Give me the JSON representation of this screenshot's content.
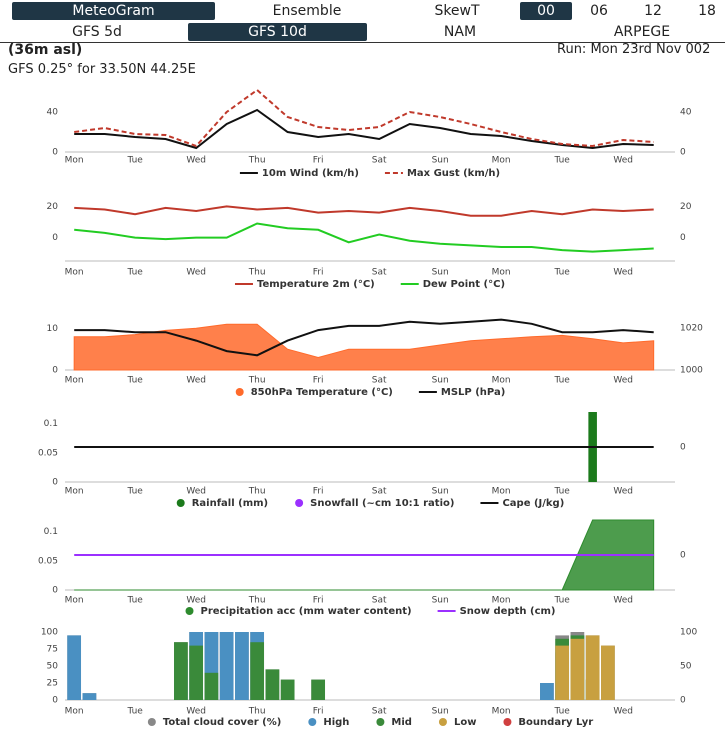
{
  "nav": {
    "row1": [
      "MeteoGram",
      "Ensemble",
      "SkewT",
      "00",
      "06",
      "12",
      "18"
    ],
    "row2": [
      "GFS 5d",
      "GFS 10d",
      "NAM",
      "ARPEGE"
    ]
  },
  "header": {
    "elevation": "(36m asl)",
    "run": "Run: Mon 23rd Nov 002",
    "location": "GFS 0.25° for 33.50N 44.25E"
  },
  "chart_data": [
    {
      "type": "line",
      "xlim": [
        -0.15,
        9.85
      ],
      "xticks": [
        {
          "value": 0,
          "label": "Mon"
        },
        {
          "value": 1,
          "label": "Tue"
        },
        {
          "value": 2,
          "label": "Wed"
        },
        {
          "value": 3,
          "label": "Thu"
        },
        {
          "value": 4,
          "label": "Fri"
        },
        {
          "value": 5,
          "label": "Sat"
        },
        {
          "value": 6,
          "label": "Sun"
        },
        {
          "value": 7,
          "label": "Mon"
        },
        {
          "value": 8,
          "label": "Tue"
        },
        {
          "value": 9,
          "label": "Wed"
        }
      ],
      "x": [
        0,
        0.5,
        1,
        1.5,
        2,
        2.5,
        3,
        3.5,
        4,
        4.5,
        5,
        5.5,
        6,
        6.5,
        7,
        7.5,
        8,
        8.5,
        9,
        9.5
      ],
      "ylim": [
        0,
        55
      ],
      "yticks": [
        0,
        40
      ],
      "y2lim": [
        0,
        55
      ],
      "y2ticks": [
        0,
        40
      ],
      "series": [
        {
          "name": "10m Wind (km/h)",
          "color": "#111111",
          "mark": "line",
          "values": [
            18,
            18,
            15,
            13,
            4,
            28,
            42,
            20,
            15,
            18,
            13,
            28,
            24,
            18,
            16,
            11,
            7,
            4,
            8,
            7
          ]
        },
        {
          "name": "Max Gust (km/h)",
          "color": "#c0392b",
          "mark": "line",
          "dash": true,
          "values": [
            20,
            24,
            18,
            17,
            6,
            40,
            62,
            35,
            25,
            22,
            25,
            40,
            35,
            28,
            20,
            13,
            8,
            6,
            12,
            10
          ]
        }
      ]
    },
    {
      "type": "line",
      "xlim": [
        -0.15,
        9.85
      ],
      "xticks": [
        {
          "value": 0,
          "label": "Mon"
        },
        {
          "value": 1,
          "label": "Tue"
        },
        {
          "value": 2,
          "label": "Wed"
        },
        {
          "value": 3,
          "label": "Thu"
        },
        {
          "value": 4,
          "label": "Fri"
        },
        {
          "value": 5,
          "label": "Sat"
        },
        {
          "value": 6,
          "label": "Sun"
        },
        {
          "value": 7,
          "label": "Mon"
        },
        {
          "value": 8,
          "label": "Tue"
        },
        {
          "value": 9,
          "label": "Wed"
        }
      ],
      "x": [
        0,
        0.5,
        1,
        1.5,
        2,
        2.5,
        3,
        3.5,
        4,
        4.5,
        5,
        5.5,
        6,
        6.5,
        7,
        7.5,
        8,
        8.5,
        9,
        9.5
      ],
      "ylim": [
        -15,
        26
      ],
      "yticks": [
        0,
        20
      ],
      "y2lim": [
        -15,
        26
      ],
      "y2ticks": [
        0,
        20
      ],
      "series": [
        {
          "name": "Temperature 2m (°C)",
          "color": "#c0392b",
          "mark": "line",
          "values": [
            19,
            18,
            15,
            19,
            17,
            20,
            18,
            19,
            16,
            17,
            16,
            19,
            17,
            14,
            14,
            17,
            15,
            18,
            17,
            18
          ]
        },
        {
          "name": "Dew Point (°C)",
          "color": "#22cc22",
          "mark": "line",
          "values": [
            5,
            3,
            0,
            -1,
            0,
            0,
            9,
            6,
            5,
            -3,
            2,
            -2,
            -4,
            -5,
            -6,
            -6,
            -8,
            -9,
            -8,
            -7
          ]
        }
      ]
    },
    {
      "type": "area",
      "xlim": [
        -0.15,
        9.85
      ],
      "xticks": [
        {
          "value": 0,
          "label": "Mon"
        },
        {
          "value": 1,
          "label": "Tue"
        },
        {
          "value": 2,
          "label": "Wed"
        },
        {
          "value": 3,
          "label": "Thu"
        },
        {
          "value": 4,
          "label": "Fri"
        },
        {
          "value": 5,
          "label": "Sat"
        },
        {
          "value": 6,
          "label": "Sun"
        },
        {
          "value": 7,
          "label": "Mon"
        },
        {
          "value": 8,
          "label": "Tue"
        },
        {
          "value": 9,
          "label": "Wed"
        }
      ],
      "x": [
        0,
        0.5,
        1,
        1.5,
        2,
        2.5,
        3,
        3.5,
        4,
        4.5,
        5,
        5.5,
        6,
        6.5,
        7,
        7.5,
        8,
        8.5,
        9,
        9.5
      ],
      "ylim": [
        0,
        12
      ],
      "yticks": [
        0,
        10
      ],
      "y2lim": [
        1000,
        1023.8
      ],
      "y2ticks": [
        1000,
        1020
      ],
      "series": [
        {
          "name": "850hPa Temperature (°C)",
          "color": "#ff6a2b",
          "mark": "area",
          "values": [
            8,
            8,
            8.5,
            9.5,
            10,
            11,
            11,
            5,
            3,
            5,
            5,
            5,
            6,
            7,
            7.5,
            8,
            8.3,
            7.5,
            6.5,
            7
          ]
        },
        {
          "name": "MSLP (hPa)",
          "color": "#111111",
          "mark": "line",
          "axis": "y2",
          "values": [
            1019,
            1019,
            1018,
            1018,
            1014,
            1009,
            1007,
            1014,
            1019,
            1021,
            1021,
            1023,
            1022,
            1023,
            1024,
            1022,
            1018,
            1018,
            1019,
            1018
          ]
        }
      ]
    },
    {
      "type": "bar",
      "xlim": [
        -0.15,
        9.85
      ],
      "xticks": [
        {
          "value": 0,
          "label": "Mon"
        },
        {
          "value": 1,
          "label": "Tue"
        },
        {
          "value": 2,
          "label": "Wed"
        },
        {
          "value": 3,
          "label": "Thu"
        },
        {
          "value": 4,
          "label": "Fri"
        },
        {
          "value": 5,
          "label": "Sat"
        },
        {
          "value": 6,
          "label": "Sun"
        },
        {
          "value": 7,
          "label": "Mon"
        },
        {
          "value": 8,
          "label": "Tue"
        },
        {
          "value": 9,
          "label": "Wed"
        }
      ],
      "x": [
        0,
        0.5,
        1,
        1.5,
        2,
        2.5,
        3,
        3.5,
        4,
        4.5,
        5,
        5.5,
        6,
        6.5,
        7,
        7.5,
        8,
        8.5,
        9,
        9.5
      ],
      "ylim": [
        0,
        0.12
      ],
      "yticks": [
        0,
        0.05,
        0.1
      ],
      "y2lim": [
        -1,
        1
      ],
      "y2ticks": [
        0
      ],
      "series": [
        {
          "name": "Rainfall (mm)",
          "color": "#1b7a1b",
          "mark": "bar",
          "values": [
            0,
            0,
            0,
            0,
            0,
            0,
            0,
            0,
            0,
            0,
            0,
            0,
            0,
            0,
            0,
            0,
            0,
            0.12,
            0,
            0
          ]
        },
        {
          "name": "Snowfall (~cm 10:1 ratio)",
          "color": "#9b30ff",
          "mark": "bar",
          "values": [
            0,
            0,
            0,
            0,
            0,
            0,
            0,
            0,
            0,
            0,
            0,
            0,
            0,
            0,
            0,
            0,
            0,
            0,
            0,
            0
          ]
        },
        {
          "name": "Cape (J/kg)",
          "color": "#111111",
          "mark": "line",
          "axis": "y2",
          "values": [
            0,
            0,
            0,
            0,
            0,
            0,
            0,
            0,
            0,
            0,
            0,
            0,
            0,
            0,
            0,
            0,
            0,
            0,
            0,
            0
          ]
        }
      ]
    },
    {
      "type": "area",
      "xlim": [
        -0.15,
        9.85
      ],
      "xticks": [
        {
          "value": 0,
          "label": "Mon"
        },
        {
          "value": 1,
          "label": "Tue"
        },
        {
          "value": 2,
          "label": "Wed"
        },
        {
          "value": 3,
          "label": "Thu"
        },
        {
          "value": 4,
          "label": "Fri"
        },
        {
          "value": 5,
          "label": "Sat"
        },
        {
          "value": 6,
          "label": "Sun"
        },
        {
          "value": 7,
          "label": "Mon"
        },
        {
          "value": 8,
          "label": "Tue"
        },
        {
          "value": 9,
          "label": "Wed"
        }
      ],
      "x": [
        0,
        0.5,
        1,
        1.5,
        2,
        2.5,
        3,
        3.5,
        4,
        4.5,
        5,
        5.5,
        6,
        6.5,
        7,
        7.5,
        8,
        8.5,
        9,
        9.5
      ],
      "ylim": [
        0,
        0.12
      ],
      "yticks": [
        0,
        0.05,
        0.1
      ],
      "y2lim": [
        -1,
        1
      ],
      "y2ticks": [
        0
      ],
      "series": [
        {
          "name": "Precipitation acc (mm water content)",
          "color": "#2e8b2e",
          "mark": "area",
          "values": [
            0,
            0,
            0,
            0,
            0,
            0,
            0,
            0,
            0,
            0,
            0,
            0,
            0,
            0,
            0,
            0,
            0,
            0.12,
            0.12,
            0.12
          ]
        },
        {
          "name": "Snow depth (cm)",
          "color": "#9b30ff",
          "mark": "line",
          "axis": "y2",
          "values": [
            0,
            0,
            0,
            0,
            0,
            0,
            0,
            0,
            0,
            0,
            0,
            0,
            0,
            0,
            0,
            0,
            0,
            0,
            0,
            0
          ]
        }
      ]
    },
    {
      "type": "bar",
      "xlim": [
        -0.15,
        9.85
      ],
      "xticks": [
        {
          "value": 0,
          "label": "Mon"
        },
        {
          "value": 1,
          "label": "Tue"
        },
        {
          "value": 2,
          "label": "Wed"
        },
        {
          "value": 3,
          "label": "Thu"
        },
        {
          "value": 4,
          "label": "Fri"
        },
        {
          "value": 5,
          "label": "Sat"
        },
        {
          "value": 6,
          "label": "Sun"
        },
        {
          "value": 7,
          "label": "Mon"
        },
        {
          "value": 8,
          "label": "Tue"
        },
        {
          "value": 9,
          "label": "Wed"
        }
      ],
      "x": [
        0,
        0.25,
        0.5,
        0.75,
        1,
        1.25,
        1.5,
        1.75,
        2,
        2.25,
        2.5,
        2.75,
        3,
        3.25,
        3.5,
        3.75,
        4,
        4.25,
        4.5,
        4.75,
        5,
        5.25,
        5.5,
        5.75,
        6,
        6.25,
        6.5,
        6.75,
        7,
        7.25,
        7.5,
        7.75,
        8,
        8.25,
        8.5,
        8.75,
        9,
        9.25,
        9.5,
        9.75
      ],
      "ylim": [
        0,
        100
      ],
      "yticks": [
        0,
        25,
        50,
        75,
        100
      ],
      "y2lim": [
        0,
        100
      ],
      "y2ticks": [
        0,
        50,
        100
      ],
      "series": [
        {
          "name": "Total cloud cover (%)",
          "color": "#888888",
          "mark": "bar",
          "values": [
            95,
            10,
            0,
            0,
            0,
            0,
            0,
            85,
            100,
            100,
            100,
            100,
            100,
            45,
            30,
            0,
            30,
            0,
            0,
            0,
            0,
            0,
            0,
            0,
            0,
            0,
            0,
            0,
            0,
            0,
            0,
            25,
            95,
            100,
            95,
            80,
            0,
            0,
            0,
            0
          ]
        },
        {
          "name": "High",
          "color": "#4a90c2",
          "mark": "bar",
          "values": [
            95,
            10,
            0,
            0,
            0,
            0,
            0,
            60,
            100,
            100,
            100,
            100,
            100,
            0,
            0,
            0,
            0,
            0,
            0,
            0,
            0,
            0,
            0,
            0,
            0,
            0,
            0,
            0,
            0,
            0,
            0,
            25,
            70,
            95,
            0,
            0,
            0,
            0,
            0,
            0
          ]
        },
        {
          "name": "Mid",
          "color": "#3a8a3a",
          "mark": "bar",
          "values": [
            0,
            0,
            0,
            0,
            0,
            0,
            0,
            85,
            80,
            40,
            0,
            0,
            85,
            45,
            30,
            0,
            30,
            0,
            0,
            0,
            0,
            0,
            0,
            0,
            0,
            0,
            0,
            0,
            0,
            0,
            0,
            0,
            90,
            95,
            30,
            0,
            0,
            0,
            0,
            0
          ]
        },
        {
          "name": "Low",
          "color": "#c8a040",
          "mark": "bar",
          "values": [
            0,
            0,
            0,
            0,
            0,
            0,
            0,
            0,
            0,
            0,
            0,
            0,
            0,
            0,
            0,
            0,
            0,
            0,
            0,
            0,
            0,
            0,
            0,
            0,
            0,
            0,
            0,
            0,
            0,
            0,
            0,
            0,
            80,
            90,
            95,
            80,
            0,
            0,
            0,
            0
          ]
        },
        {
          "name": "Boundary Lyr",
          "color": "#d04040",
          "mark": "bar",
          "values": [
            0,
            0,
            0,
            0,
            0,
            0,
            0,
            0,
            0,
            0,
            0,
            0,
            0,
            0,
            0,
            0,
            0,
            0,
            0,
            0,
            0,
            0,
            0,
            0,
            0,
            0,
            0,
            0,
            0,
            0,
            0,
            0,
            0,
            0,
            0,
            0,
            0,
            0,
            0,
            0
          ]
        }
      ]
    }
  ]
}
